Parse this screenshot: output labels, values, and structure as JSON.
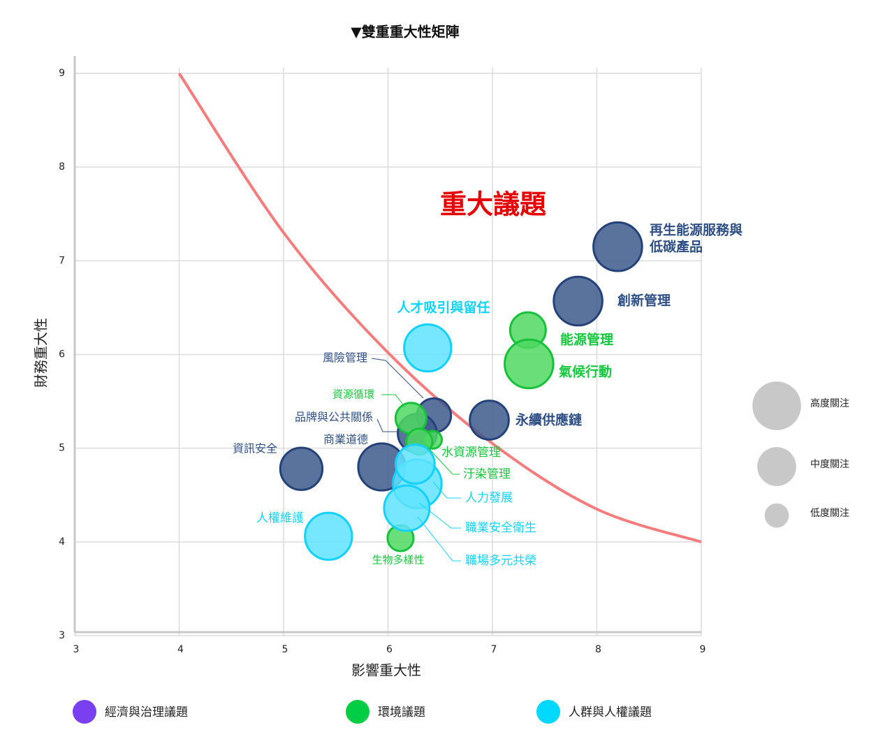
{
  "chart_data": {
    "type": "scatter",
    "title": "▼雙重重大性矩陣",
    "x_label": "影響重大性",
    "y_label": "財務重大性",
    "annotation": "重大議題",
    "annotation_color": "#e60000",
    "xlim": [
      3,
      9
    ],
    "ylim": [
      3,
      9
    ],
    "xticks": [
      3,
      4,
      5,
      6,
      7,
      8,
      9
    ],
    "yticks": [
      3,
      4,
      5,
      6,
      7,
      8,
      9
    ],
    "grid": true,
    "curve": {
      "color": "#f47c7c",
      "x": [
        4,
        5,
        6,
        7,
        8,
        9
      ],
      "y": [
        9,
        7.3,
        6.02,
        5.05,
        4.35,
        4
      ]
    },
    "series": [
      {
        "name": "經濟與治理議題",
        "legend_color": "#7b3ff2",
        "color": "#3d5a8c",
        "label_color": "#2e4f86",
        "labels": [
          "再生能源服務與\n低碳產品",
          "創新管理",
          "永續供應鏈",
          "風險管理",
          "品牌與公共關係",
          "商業道德",
          "資訊安全"
        ],
        "x": [
          8.2,
          7.82,
          6.97,
          6.44,
          6.28,
          5.94,
          5.17
        ],
        "values": [
          7.15,
          6.57,
          5.3,
          5.35,
          5.16,
          4.8,
          4.78
        ],
        "sizes": [
          3.0,
          3.0,
          2.4,
          2.1,
          2.4,
          2.9,
          2.6
        ]
      },
      {
        "name": "環境議題",
        "legend_color": "#00cc44",
        "color": "#4fd862",
        "label_color": "#14c83c",
        "labels": [
          "能源管理",
          "氣候行動",
          "資源循環",
          "水資源管理",
          "汙染管理",
          "生物多樣性"
        ],
        "x": [
          7.34,
          7.35,
          6.22,
          6.43,
          6.3,
          6.12
        ],
        "values": [
          6.26,
          5.9,
          5.32,
          5.09,
          5.07,
          4.04
        ],
        "sizes": [
          2.2,
          3.0,
          1.9,
          1.1,
          1.6,
          1.6
        ]
      },
      {
        "name": "人群與人權議題",
        "legend_color": "#00d8ff",
        "color": "#5fe3ff",
        "label_color": "#10d4ff",
        "labels": [
          "人才吸引與留任",
          "人力發展",
          "職業安全衛生",
          "職場多元共榮",
          "人權維護"
        ],
        "x": [
          6.38,
          6.28,
          6.18,
          6.26,
          5.43
        ],
        "values": [
          6.07,
          4.62,
          4.36,
          4.83,
          4.06
        ],
        "sizes": [
          2.9,
          3.0,
          2.8,
          2.4,
          2.9
        ]
      }
    ],
    "size_legend": [
      {
        "label": "高度關注",
        "size": 3.0
      },
      {
        "label": "中度關注",
        "size": 2.4
      },
      {
        "label": "低度關注",
        "size": 1.5
      }
    ]
  }
}
